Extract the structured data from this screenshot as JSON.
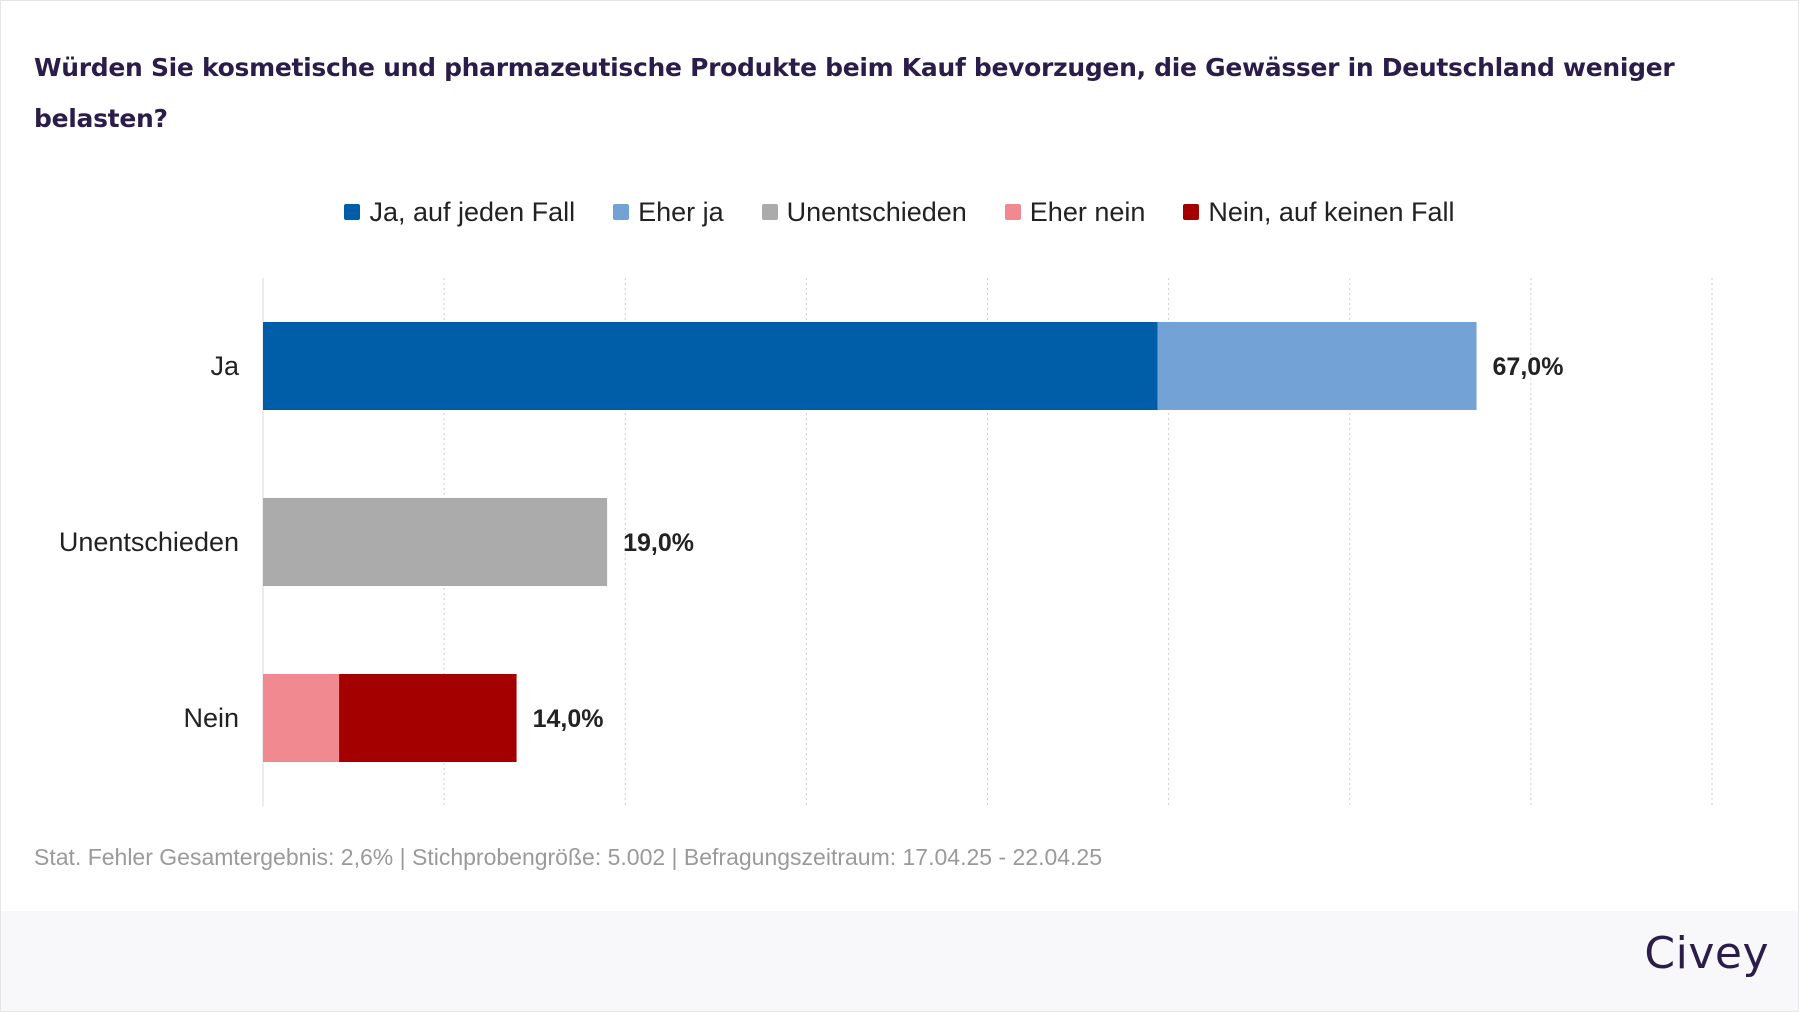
{
  "title": "Würden Sie kosmetische und pharmazeutische Produkte beim Kauf bevorzugen, die Gewässer in Deutschland weniger belasten?",
  "legend": [
    {
      "label": "Ja, auf jeden Fall",
      "color": "#005ea8"
    },
    {
      "label": "Eher ja",
      "color": "#72a2d6"
    },
    {
      "label": "Unentschieden",
      "color": "#ababab"
    },
    {
      "label": "Eher nein",
      "color": "#f08a90"
    },
    {
      "label": "Nein, auf keinen Fall",
      "color": "#a50000"
    }
  ],
  "chart_data": {
    "type": "bar",
    "orientation": "horizontal",
    "stacked": true,
    "categories": [
      "Ja",
      "Unentschieden",
      "Nein"
    ],
    "series": [
      {
        "name": "Ja, auf jeden Fall",
        "color": "#005ea8",
        "values": [
          49.4,
          0,
          0
        ]
      },
      {
        "name": "Eher ja",
        "color": "#72a2d6",
        "values": [
          17.6,
          0,
          0
        ]
      },
      {
        "name": "Unentschieden",
        "color": "#ababab",
        "values": [
          0,
          19.0,
          0
        ]
      },
      {
        "name": "Eher nein",
        "color": "#f08a90",
        "values": [
          0,
          0,
          4.2
        ]
      },
      {
        "name": "Nein, auf keinen Fall",
        "color": "#a50000",
        "values": [
          0,
          0,
          9.8
        ]
      }
    ],
    "totals": [
      "67,0%",
      "19,0%",
      "14,0%"
    ],
    "xlim": [
      0,
      80
    ],
    "gridlines": [
      10,
      20,
      30,
      40,
      50,
      60,
      70,
      80
    ],
    "grid": true,
    "legend_position": "top-center"
  },
  "footnote": "Stat. Fehler Gesamtergebnis: 2,6% | Stichprobengröße: 5.002 | Befragungszeitraum: 17.04.25 - 22.04.25",
  "brand": "Civey"
}
